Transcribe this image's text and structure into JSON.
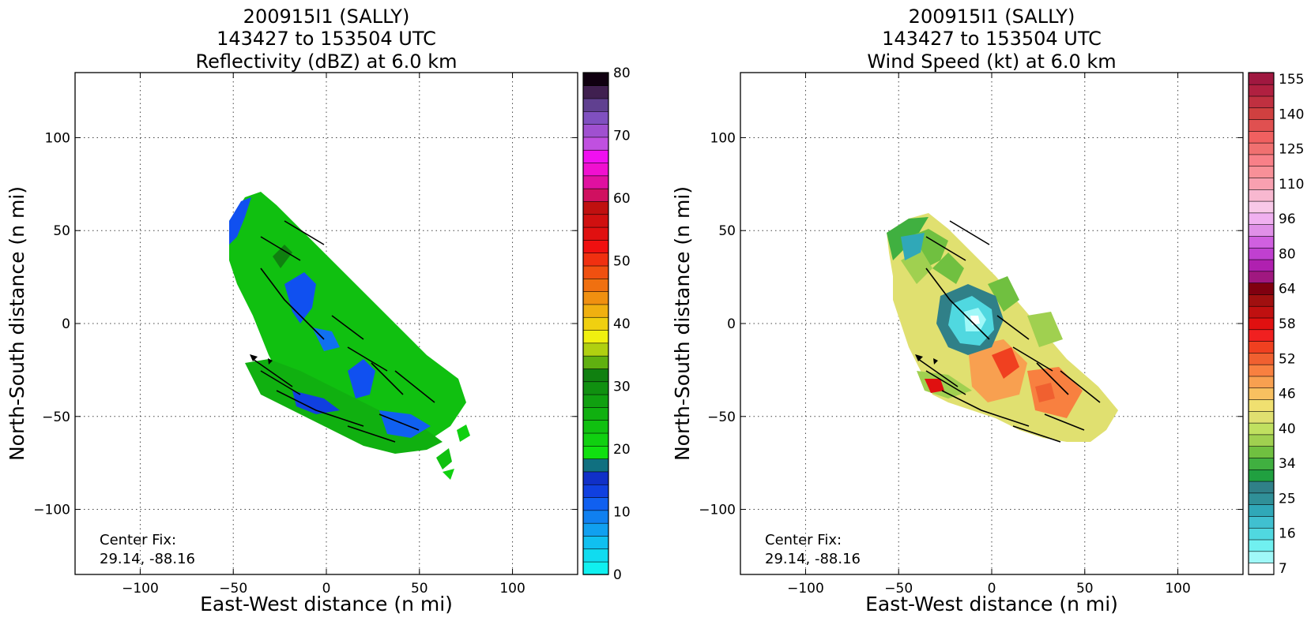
{
  "chart_data": [
    {
      "type": "heatmap",
      "title_lines": [
        "200915I1 (SALLY)",
        "143427 to 153504 UTC",
        "Reflectivity (dBZ) at 6.0 km"
      ],
      "xlabel": "East-West distance (n mi)",
      "ylabel": "North-South distance (n mi)",
      "xlim": [
        -135,
        135
      ],
      "ylim": [
        -135,
        135
      ],
      "xticks": [
        -100,
        -50,
        0,
        50,
        100
      ],
      "yticks": [
        -100,
        -50,
        0,
        50,
        100
      ],
      "grid": true,
      "annotation": [
        "Center Fix:",
        "29.14, -88.16"
      ],
      "colorbar": {
        "levels": 24,
        "tick_labels": [
          "0",
          "10",
          "20",
          "30",
          "40",
          "50",
          "60",
          "70",
          "80"
        ],
        "tick_levels": [
          0,
          4,
          7,
          10,
          13,
          16,
          19,
          22,
          24
        ],
        "colors": [
          "#10f0f0",
          "#10dcf0",
          "#10c0f0",
          "#10a0f0",
          "#1080f0",
          "#1060f0",
          "#1040e0",
          "#1030c8",
          "#107080",
          "#10e010",
          "#10d010",
          "#10c010",
          "#10b010",
          "#10a010",
          "#109010",
          "#108010",
          "#60b010",
          "#b0d010",
          "#f0f010",
          "#f0d010",
          "#f0b010",
          "#f09010",
          "#f07010",
          "#f05010"
        ],
        "colors_upper": [
          "#f03010",
          "#f01010",
          "#e01010",
          "#d01010",
          "#c01010",
          "#d01060",
          "#e010a0",
          "#f010d0",
          "#f010f0",
          "#c050e0",
          "#a050d0",
          "#8050c0",
          "#604090",
          "#402050",
          "#100010"
        ]
      },
      "fields": {
        "echo_region": "rainband region oriented NW-SE centered near (0,0) with outer band to south",
        "dominant_values": "20-30 dBZ green with 10-15 dBZ blue patches"
      }
    },
    {
      "type": "heatmap",
      "title_lines": [
        "200915I1 (SALLY)",
        "143427 to 153504 UTC",
        "Wind Speed (kt) at 6.0 km"
      ],
      "xlabel": "East-West distance (n mi)",
      "ylabel": "North-South distance (n mi)",
      "xlim": [
        -135,
        135
      ],
      "ylim": [
        -135,
        135
      ],
      "xticks": [
        -100,
        -50,
        0,
        50,
        100
      ],
      "yticks": [
        -100,
        -50,
        0,
        50,
        100
      ],
      "grid": true,
      "annotation": [
        "Center Fix:",
        "29.14, -88.16"
      ],
      "colorbar": {
        "tick_labels": [
          "7",
          "16",
          "25",
          "34",
          "40",
          "46",
          "52",
          "58",
          "64",
          "80",
          "96",
          "110",
          "125",
          "140",
          "155"
        ],
        "colors": [
          "#ffffff",
          "#a0f8f8",
          "#70f0f0",
          "#50d8e0",
          "#40c0d0",
          "#30a8b8",
          "#309098",
          "#308088",
          "#20a040",
          "#40b040",
          "#70c040",
          "#a0d050",
          "#c0e060",
          "#e0e070",
          "#f0e070",
          "#f8c060",
          "#f8a050",
          "#f88040",
          "#f06030",
          "#f04020",
          "#f02020",
          "#e01010",
          "#c01010",
          "#a01010",
          "#800010",
          "#a01880",
          "#b020b0",
          "#c040d0",
          "#d060e0",
          "#e090e8",
          "#f0b0f0",
          "#f8c8e8",
          "#f8b8d0",
          "#f8a0b0",
          "#f89098",
          "#f88088",
          "#f07070",
          "#f06060",
          "#e05050",
          "#d04040",
          "#c03040",
          "#b02040",
          "#a01840"
        ]
      },
      "fields": {
        "wind_max_region": "45-60 kt orange/red southeast of center",
        "eye": "7-25 kt cyan near center"
      }
    }
  ]
}
